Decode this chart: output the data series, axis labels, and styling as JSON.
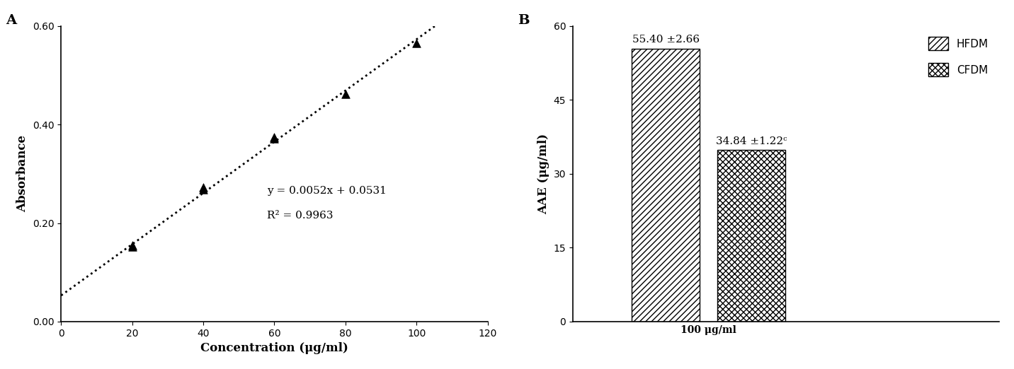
{
  "panel_A": {
    "x_data": [
      20,
      20,
      40,
      40,
      60,
      60,
      80,
      100
    ],
    "y_data": [
      0.155,
      0.152,
      0.268,
      0.273,
      0.372,
      0.375,
      0.462,
      0.565
    ],
    "equation": "y = 0.0052x + 0.0531",
    "r_squared": "R² = 0.9963",
    "slope": 0.0052,
    "intercept": 0.0531,
    "xlabel": "Concentration (μg/ml)",
    "ylabel": "Absorbance",
    "xlim": [
      0,
      120
    ],
    "ylim": [
      0.0,
      0.6
    ],
    "xticks": [
      0,
      20,
      40,
      60,
      80,
      100,
      120
    ],
    "yticks": [
      0.0,
      0.2,
      0.4,
      0.6
    ],
    "eq_x": 58,
    "eq_y": 0.265,
    "r2_y": 0.215,
    "panel_label": "A"
  },
  "panel_B": {
    "HFDM_value": 55.4,
    "CFDM_value": 34.84,
    "HFDM_label": "55.40 ±2.66",
    "CFDM_label": "34.84 ±1.22ᶜ",
    "ylabel": "AAE (μg/ml)",
    "ylim": [
      0,
      60
    ],
    "yticks": [
      0,
      15,
      30,
      45,
      60
    ],
    "xlabel": "100 μg/ml",
    "panel_label": "B",
    "legend_HFDM": "HFDM",
    "legend_CFDM": "CFDM",
    "bar_width": 0.35,
    "x_HFDM": 0.78,
    "x_CFDM": 1.22,
    "x_tick_center": 1.0,
    "xlim": [
      0.3,
      2.5
    ]
  }
}
